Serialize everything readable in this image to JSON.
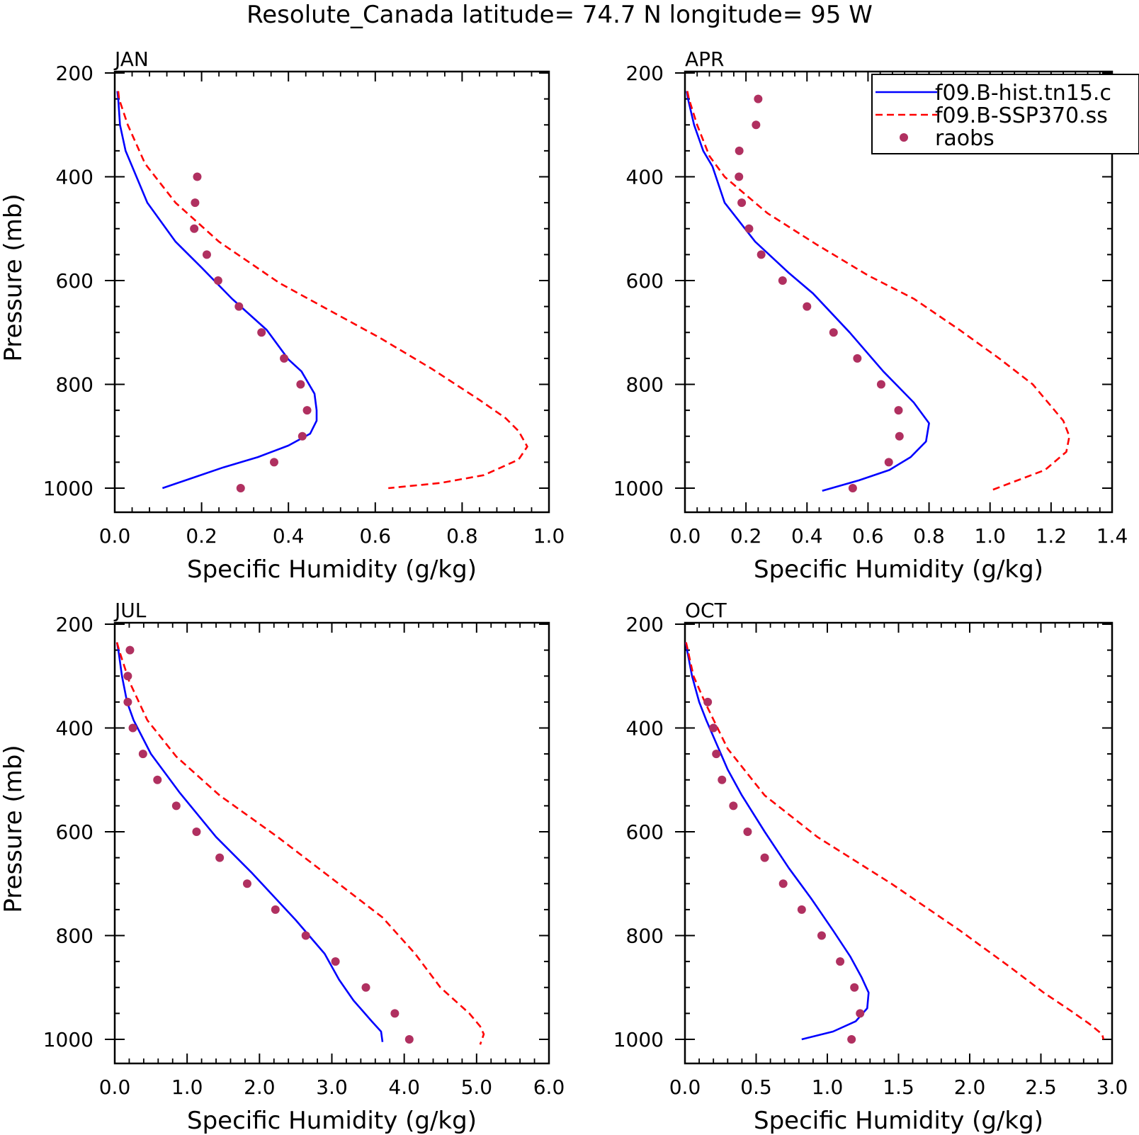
{
  "figure": {
    "title": "Resolute_Canada  latitude= 74.7 N longitude= 95 W"
  },
  "legend": {
    "entries": [
      {
        "label": "f09.B-hist.tn15.c",
        "color": "#0000ff",
        "style": "solid"
      },
      {
        "label": "f09.B-SSP370.ss",
        "color": "#ff0000",
        "style": "dashed"
      },
      {
        "label": "raobs",
        "color": "#b03060",
        "style": "marker"
      }
    ]
  },
  "chart_data": [
    {
      "type": "line",
      "panel": "JAN",
      "xlabel": "Specific Humidity (g/kg)",
      "ylabel": "Pressure (mb)",
      "xlim": [
        0.0,
        1.0
      ],
      "xticks": [
        "0.0",
        "0.2",
        "0.4",
        "0.6",
        "0.8",
        "1.0"
      ],
      "ylim": [
        1000,
        200
      ],
      "yticks": [
        "200",
        "400",
        "600",
        "800",
        "1000"
      ],
      "series": [
        {
          "name": "f09.B-hist.tn15.c",
          "color": "#0000ff",
          "points": [
            [
              0.006,
              235
            ],
            [
              0.008,
              250
            ],
            [
              0.012,
              300
            ],
            [
              0.025,
              350
            ],
            [
              0.04,
              380
            ],
            [
              0.075,
              450
            ],
            [
              0.14,
              525
            ],
            [
              0.2,
              575
            ],
            [
              0.27,
              635
            ],
            [
              0.35,
              695
            ],
            [
              0.4,
              752
            ],
            [
              0.43,
              775
            ],
            [
              0.46,
              818
            ],
            [
              0.465,
              850
            ],
            [
              0.465,
              870
            ],
            [
              0.45,
              895
            ],
            [
              0.4,
              918
            ],
            [
              0.33,
              940
            ],
            [
              0.25,
              960
            ],
            [
              0.18,
              980
            ],
            [
              0.11,
              1000
            ]
          ]
        },
        {
          "name": "f09.B-SSP370.ss",
          "color": "#ff0000",
          "points": [
            [
              0.008,
              235
            ],
            [
              0.01,
              250
            ],
            [
              0.03,
              300
            ],
            [
              0.07,
              375
            ],
            [
              0.14,
              450
            ],
            [
              0.24,
              525
            ],
            [
              0.38,
              605
            ],
            [
              0.5,
              660
            ],
            [
              0.61,
              710
            ],
            [
              0.73,
              770
            ],
            [
              0.84,
              830
            ],
            [
              0.9,
              865
            ],
            [
              0.93,
              890
            ],
            [
              0.95,
              920
            ],
            [
              0.93,
              945
            ],
            [
              0.85,
              975
            ],
            [
              0.75,
              990
            ],
            [
              0.63,
              1000
            ]
          ]
        },
        {
          "name": "raobs",
          "color": "#b03060",
          "points": [
            [
              0.19,
              400
            ],
            [
              0.185,
              450
            ],
            [
              0.183,
              500
            ],
            [
              0.212,
              550
            ],
            [
              0.238,
              600
            ],
            [
              0.286,
              650
            ],
            [
              0.338,
              700
            ],
            [
              0.39,
              750
            ],
            [
              0.428,
              800
            ],
            [
              0.443,
              850
            ],
            [
              0.432,
              900
            ],
            [
              0.367,
              950
            ],
            [
              0.29,
              1000
            ]
          ]
        }
      ]
    },
    {
      "type": "line",
      "panel": "APR",
      "xlabel": "Specific Humidity (g/kg)",
      "ylabel": "Pressure (mb)",
      "xlim": [
        0.0,
        1.4
      ],
      "xticks": [
        "0.0",
        "0.2",
        "0.4",
        "0.6",
        "0.8",
        "1.0",
        "1.2",
        "1.4"
      ],
      "ylim": [
        1000,
        200
      ],
      "yticks": [
        "200",
        "400",
        "600",
        "800",
        "1000"
      ],
      "series": [
        {
          "name": "f09.B-hist.tn15.c",
          "color": "#0000ff",
          "points": [
            [
              0.006,
              235
            ],
            [
              0.01,
              250
            ],
            [
              0.03,
              300
            ],
            [
              0.06,
              350
            ],
            [
              0.09,
              380
            ],
            [
              0.13,
              450
            ],
            [
              0.23,
              525
            ],
            [
              0.34,
              585
            ],
            [
              0.42,
              625
            ],
            [
              0.54,
              700
            ],
            [
              0.65,
              775
            ],
            [
              0.75,
              835
            ],
            [
              0.8,
              875
            ],
            [
              0.79,
              910
            ],
            [
              0.74,
              940
            ],
            [
              0.67,
              965
            ],
            [
              0.57,
              985
            ],
            [
              0.45,
              1005
            ]
          ]
        },
        {
          "name": "f09.B-SSP370.ss",
          "color": "#ff0000",
          "points": [
            [
              0.008,
              235
            ],
            [
              0.013,
              250
            ],
            [
              0.04,
              300
            ],
            [
              0.08,
              360
            ],
            [
              0.13,
              400
            ],
            [
              0.27,
              470
            ],
            [
              0.43,
              530
            ],
            [
              0.6,
              590
            ],
            [
              0.75,
              635
            ],
            [
              0.9,
              695
            ],
            [
              1.03,
              750
            ],
            [
              1.14,
              800
            ],
            [
              1.19,
              835
            ],
            [
              1.24,
              870
            ],
            [
              1.26,
              900
            ],
            [
              1.25,
              930
            ],
            [
              1.18,
              965
            ],
            [
              1.09,
              985
            ],
            [
              1.0,
              1005
            ]
          ]
        },
        {
          "name": "raobs",
          "color": "#b03060",
          "points": [
            [
              0.24,
              250
            ],
            [
              0.233,
              300
            ],
            [
              0.178,
              350
            ],
            [
              0.177,
              400
            ],
            [
              0.186,
              450
            ],
            [
              0.21,
              500
            ],
            [
              0.25,
              550
            ],
            [
              0.32,
              600
            ],
            [
              0.4,
              650
            ],
            [
              0.487,
              700
            ],
            [
              0.565,
              750
            ],
            [
              0.643,
              800
            ],
            [
              0.7,
              850
            ],
            [
              0.703,
              900
            ],
            [
              0.668,
              950
            ],
            [
              0.55,
              1000
            ]
          ]
        }
      ]
    },
    {
      "type": "line",
      "panel": "JUL",
      "xlabel": "Specific Humidity (g/kg)",
      "ylabel": "Pressure (mb)",
      "xlim": [
        0.0,
        6.0
      ],
      "xticks": [
        "0.0",
        "1.0",
        "2.0",
        "3.0",
        "4.0",
        "5.0",
        "6.0"
      ],
      "ylim": [
        1000,
        200
      ],
      "yticks": [
        "200",
        "400",
        "600",
        "800",
        "1000"
      ],
      "series": [
        {
          "name": "f09.B-hist.tn15.c",
          "color": "#0000ff",
          "points": [
            [
              0.03,
              235
            ],
            [
              0.05,
              250
            ],
            [
              0.1,
              300
            ],
            [
              0.17,
              350
            ],
            [
              0.26,
              385
            ],
            [
              0.5,
              450
            ],
            [
              0.9,
              525
            ],
            [
              1.4,
              610
            ],
            [
              1.9,
              680
            ],
            [
              2.5,
              770
            ],
            [
              2.9,
              835
            ],
            [
              3.1,
              885
            ],
            [
              3.3,
              925
            ],
            [
              3.55,
              965
            ],
            [
              3.68,
              985
            ],
            [
              3.7,
              1005
            ]
          ]
        },
        {
          "name": "f09.B-SSP370.ss",
          "color": "#ff0000",
          "points": [
            [
              0.03,
              235
            ],
            [
              0.06,
              250
            ],
            [
              0.2,
              310
            ],
            [
              0.45,
              385
            ],
            [
              0.85,
              455
            ],
            [
              1.45,
              530
            ],
            [
              2.25,
              610
            ],
            [
              3.0,
              690
            ],
            [
              3.7,
              765
            ],
            [
              4.15,
              835
            ],
            [
              4.5,
              900
            ],
            [
              4.9,
              950
            ],
            [
              5.05,
              975
            ],
            [
              5.1,
              990
            ],
            [
              5.05,
              1010
            ]
          ]
        },
        {
          "name": "raobs",
          "color": "#b03060",
          "points": [
            [
              0.21,
              250
            ],
            [
              0.18,
              300
            ],
            [
              0.18,
              350
            ],
            [
              0.25,
              400
            ],
            [
              0.39,
              450
            ],
            [
              0.59,
              500
            ],
            [
              0.85,
              550
            ],
            [
              1.13,
              600
            ],
            [
              1.45,
              650
            ],
            [
              1.83,
              700
            ],
            [
              2.22,
              750
            ],
            [
              2.64,
              800
            ],
            [
              3.05,
              850
            ],
            [
              3.47,
              900
            ],
            [
              3.87,
              950
            ],
            [
              4.07,
              1000
            ]
          ]
        }
      ]
    },
    {
      "type": "line",
      "panel": "OCT",
      "xlabel": "Specific Humidity (g/kg)",
      "ylabel": "Pressure (mb)",
      "xlim": [
        0.0,
        3.0
      ],
      "xticks": [
        "0.0",
        "0.5",
        "1.0",
        "1.5",
        "2.0",
        "2.5",
        "3.0"
      ],
      "ylim": [
        1000,
        200
      ],
      "yticks": [
        "200",
        "400",
        "600",
        "800",
        "1000"
      ],
      "series": [
        {
          "name": "f09.B-hist.tn15.c",
          "color": "#0000ff",
          "points": [
            [
              0.006,
              235
            ],
            [
              0.015,
              250
            ],
            [
              0.05,
              300
            ],
            [
              0.1,
              350
            ],
            [
              0.15,
              385
            ],
            [
              0.3,
              480
            ],
            [
              0.4,
              530
            ],
            [
              0.56,
              600
            ],
            [
              0.73,
              670
            ],
            [
              0.89,
              730
            ],
            [
              1.04,
              790
            ],
            [
              1.16,
              840
            ],
            [
              1.24,
              880
            ],
            [
              1.29,
              910
            ],
            [
              1.28,
              940
            ],
            [
              1.2,
              965
            ],
            [
              1.04,
              985
            ],
            [
              0.82,
              1000
            ]
          ]
        },
        {
          "name": "f09.B-SSP370.ss",
          "color": "#ff0000",
          "points": [
            [
              0.008,
              235
            ],
            [
              0.02,
              250
            ],
            [
              0.06,
              300
            ],
            [
              0.14,
              350
            ],
            [
              0.3,
              440
            ],
            [
              0.56,
              530
            ],
            [
              0.93,
              610
            ],
            [
              1.45,
              700
            ],
            [
              1.93,
              790
            ],
            [
              2.28,
              860
            ],
            [
              2.52,
              910
            ],
            [
              2.71,
              945
            ],
            [
              2.84,
              970
            ],
            [
              2.93,
              990
            ],
            [
              2.94,
              1000
            ]
          ]
        },
        {
          "name": "raobs",
          "color": "#b03060",
          "points": [
            [
              0.16,
              350
            ],
            [
              0.2,
              400
            ],
            [
              0.22,
              450
            ],
            [
              0.26,
              500
            ],
            [
              0.34,
              550
            ],
            [
              0.44,
              600
            ],
            [
              0.56,
              650
            ],
            [
              0.69,
              700
            ],
            [
              0.82,
              750
            ],
            [
              0.96,
              800
            ],
            [
              1.09,
              850
            ],
            [
              1.19,
              900
            ],
            [
              1.23,
              950
            ],
            [
              1.17,
              1000
            ]
          ]
        }
      ]
    }
  ]
}
